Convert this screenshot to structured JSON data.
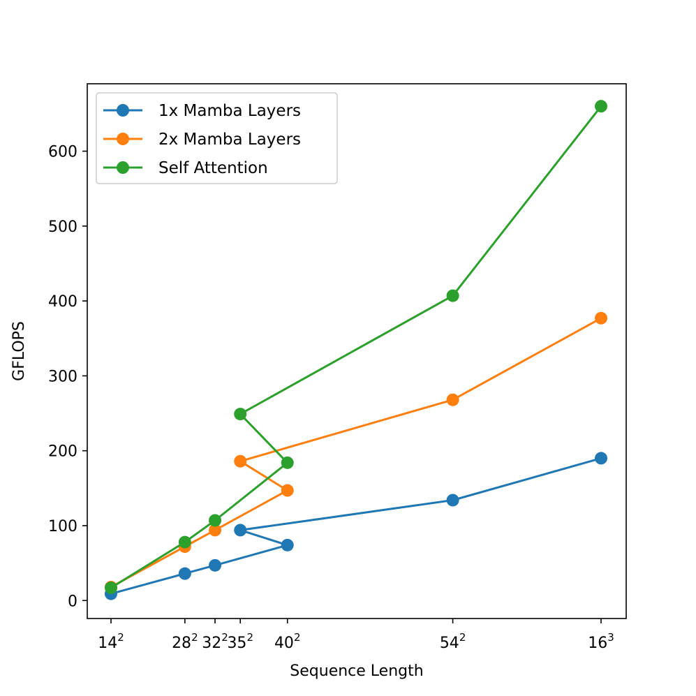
{
  "chart_data": {
    "type": "line",
    "xlabel": "Sequence Length",
    "ylabel": "GFLOPS",
    "x_ticks": [
      {
        "base": "14",
        "exp": "2"
      },
      {
        "base": "28",
        "exp": "2"
      },
      {
        "base": "32",
        "exp": "2"
      },
      {
        "base": "40",
        "exp": "2"
      },
      {
        "base": "35",
        "exp": "2"
      },
      {
        "base": "54",
        "exp": "2"
      },
      {
        "base": "16",
        "exp": "3"
      }
    ],
    "y_ticks": [
      0,
      100,
      200,
      300,
      400,
      500,
      600
    ],
    "ylim": [
      -24,
      690
    ],
    "grid": false,
    "legend_position": "top-left",
    "series": [
      {
        "name": "1x Mamba Layers",
        "color": "#1f77b4",
        "values": [
          9,
          36,
          47,
          74,
          94,
          134,
          190
        ]
      },
      {
        "name": "2x Mamba Layers",
        "color": "#ff7f0e",
        "values": [
          18,
          72,
          94,
          147,
          186,
          268,
          377
        ]
      },
      {
        "name": "Self Attention",
        "color": "#2ca02c",
        "values": [
          17,
          78,
          107,
          184,
          249,
          407,
          660
        ]
      }
    ]
  }
}
